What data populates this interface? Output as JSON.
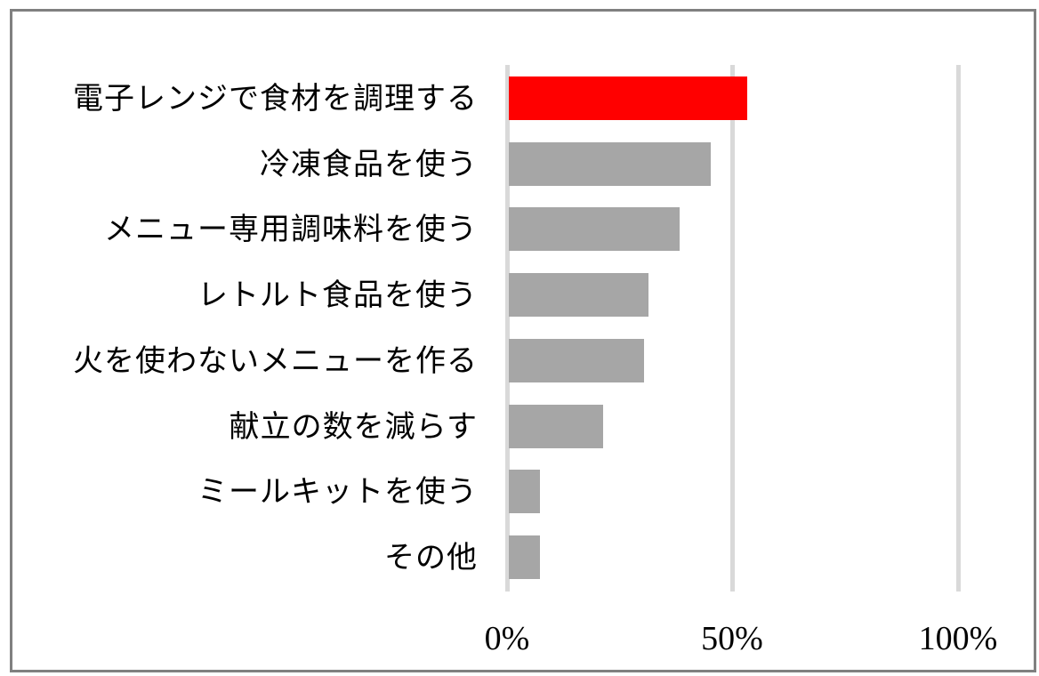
{
  "chart_data": {
    "type": "bar",
    "orientation": "horizontal",
    "title": "",
    "xlabel": "",
    "ylabel": "",
    "xlim": [
      0,
      100
    ],
    "x_ticks": [
      "0%",
      "50%",
      "100%"
    ],
    "grid": true,
    "legend": null,
    "categories": [
      "電子レンジで食材を調理する",
      "冷凍食品を使う",
      "メニュー専用調味料を使う",
      "レトルト食品を使う",
      "火を使わないメニューを作る",
      "献立の数を減らす",
      "ミールキットを使う",
      "その他"
    ],
    "values": [
      53,
      45,
      38,
      31,
      30,
      21,
      7,
      7
    ],
    "unit": "%",
    "highlight_index": 0
  },
  "colors": {
    "highlight": "#ff0000",
    "bar": "#a6a6a6",
    "grid": "#d9d9d9",
    "frame": "#808080"
  },
  "axis": {
    "ticks": [
      {
        "label": "0%",
        "value": 0
      },
      {
        "label": "50%",
        "value": 50
      },
      {
        "label": "100%",
        "value": 100
      }
    ]
  }
}
